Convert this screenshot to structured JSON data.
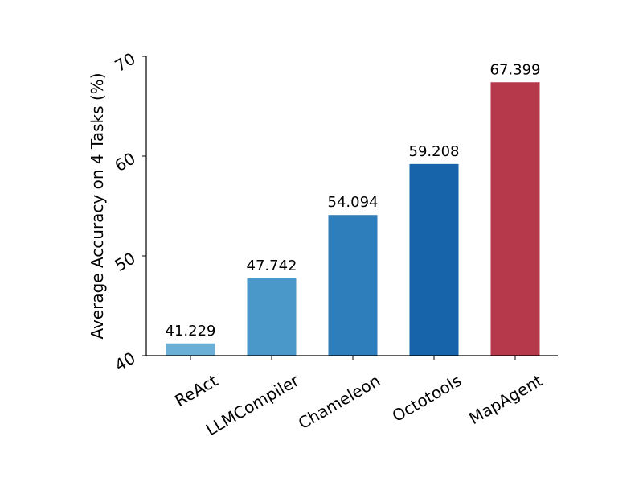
{
  "chart_data": {
    "type": "bar",
    "title": "",
    "xlabel": "",
    "ylabel": "Average Accuracy on 4 Tasks (%)",
    "ylim": [
      40,
      70
    ],
    "yticks": [
      40,
      50,
      60,
      70
    ],
    "grid": false,
    "categories": [
      "ReAct",
      "LLMCompiler",
      "Chameleon",
      "Octotools",
      "MapAgent"
    ],
    "values": [
      41.229,
      47.742,
      54.094,
      59.208,
      67.399
    ],
    "value_labels": [
      "41.229",
      "47.742",
      "54.094",
      "59.208",
      "67.399"
    ],
    "colors": [
      "#6baed6",
      "#4a98c9",
      "#2f7ebc",
      "#1764ab",
      "#b5394a"
    ]
  }
}
